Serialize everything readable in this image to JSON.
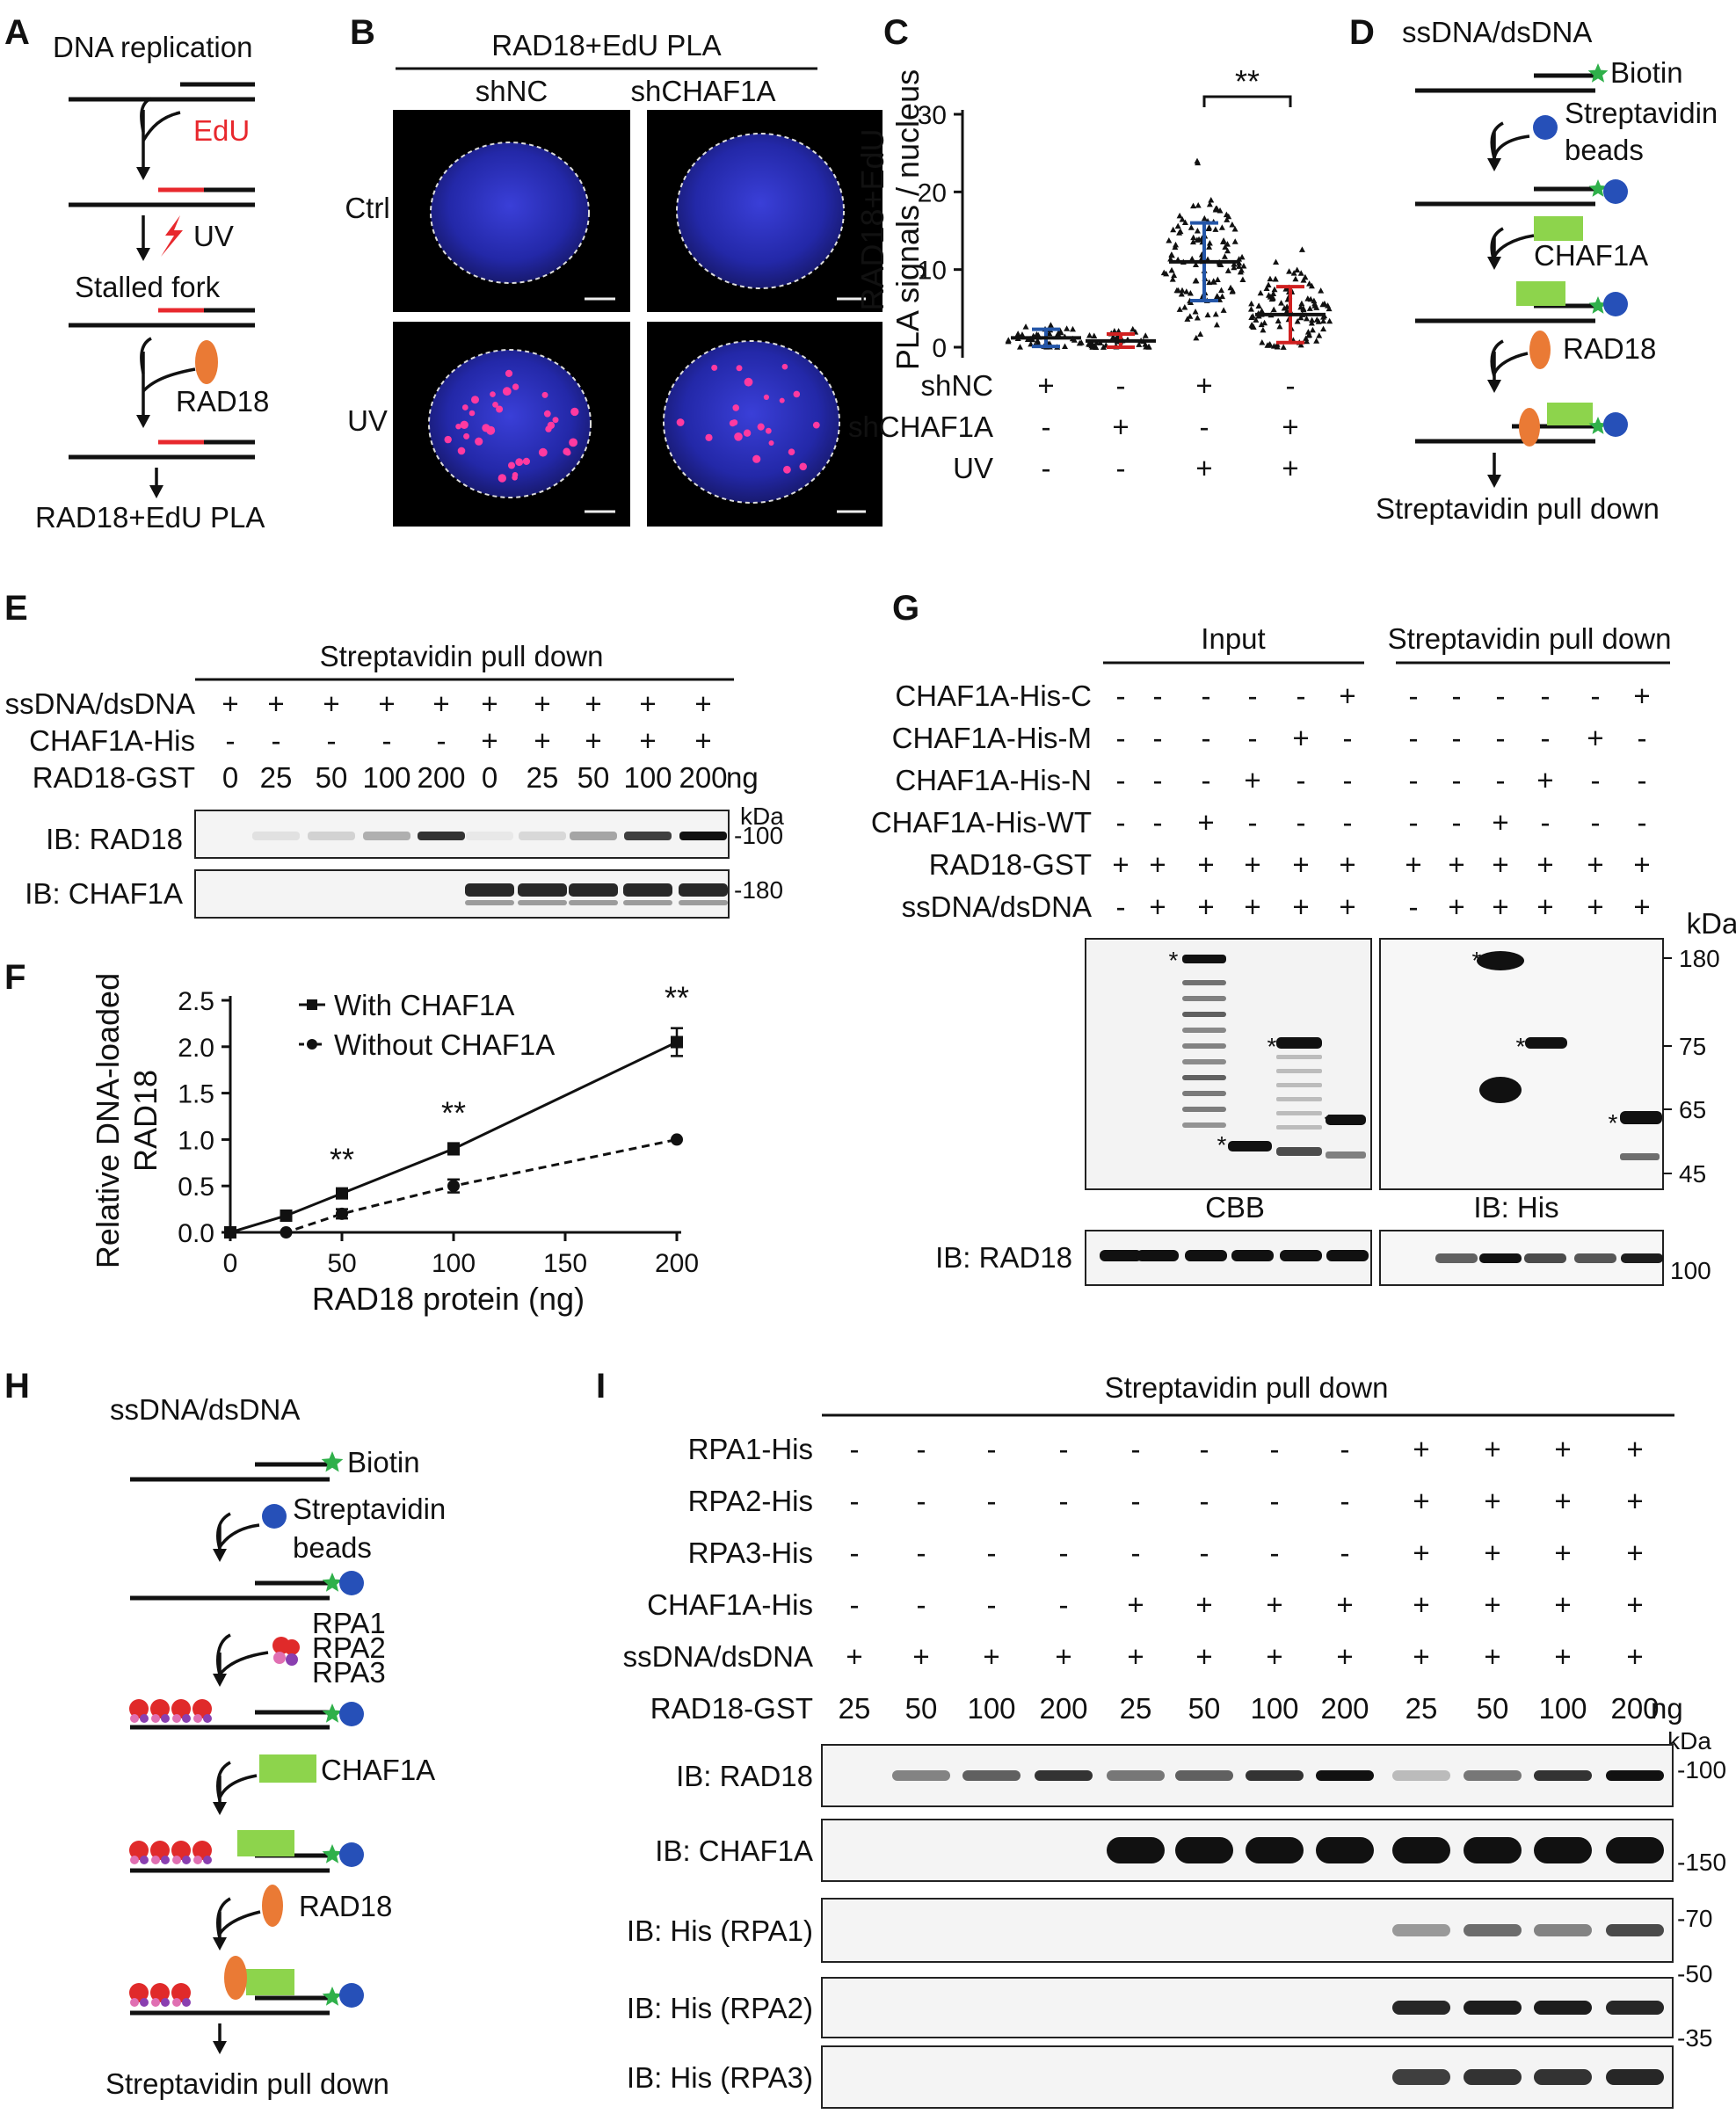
{
  "panelA": {
    "letter": "A",
    "title": "DNA replication",
    "edu": "EdU",
    "uv": "UV",
    "stalled": "Stalled fork",
    "rad18": "RAD18",
    "bottom": "RAD18+EdU PLA"
  },
  "panelB": {
    "letter": "B",
    "title": "RAD18+EdU PLA",
    "cols": [
      "shNC",
      "shCHAF1A"
    ],
    "rows": [
      "Ctrl",
      "UV"
    ]
  },
  "panelC": {
    "letter": "C",
    "ylabel_line1": "RAD18+EdU",
    "ylabel_line2": "PLA signals / nucleus",
    "sig": "**",
    "rows": [
      {
        "label": "shNC",
        "vals": [
          "+",
          "-",
          "+",
          "-"
        ]
      },
      {
        "label": "shCHAF1A",
        "vals": [
          "-",
          "+",
          "-",
          "+"
        ]
      },
      {
        "label": "UV",
        "vals": [
          "-",
          "-",
          "+",
          "+"
        ]
      }
    ],
    "chart_data": {
      "type": "scatter",
      "ylim": [
        0,
        30
      ],
      "yticks": [
        "0",
        "10",
        "20",
        "30"
      ],
      "groups": [
        {
          "mean": 1.2,
          "sd": 1.1,
          "max": 6,
          "n": 40,
          "color": "#2456a8"
        },
        {
          "mean": 0.8,
          "sd": 0.9,
          "max": 5,
          "n": 40,
          "color": "#d02020"
        },
        {
          "mean": 11,
          "sd": 5,
          "max": 25,
          "n": 120,
          "color": "#2456a8"
        },
        {
          "mean": 4.2,
          "sd": 3.6,
          "max": 15,
          "n": 110,
          "color": "#d02020"
        }
      ]
    }
  },
  "panelD": {
    "letter": "D",
    "title": "ssDNA/dsDNA",
    "biotin": "Biotin",
    "beads1": "Streptavidin",
    "beads2": "beads",
    "chaf1a": "CHAF1A",
    "rad18": "RAD18",
    "bottom": "Streptavidin pull down"
  },
  "panelE": {
    "letter": "E",
    "title": "Streptavidin pull down",
    "rows": [
      {
        "label": "ssDNA/dsDNA",
        "vals": [
          "+",
          "+",
          "+",
          "+",
          "+",
          "+",
          "+",
          "+",
          "+",
          "+"
        ]
      },
      {
        "label": "CHAF1A-His",
        "vals": [
          "-",
          "-",
          "-",
          "-",
          "-",
          "+",
          "+",
          "+",
          "+",
          "+"
        ]
      },
      {
        "label": "RAD18-GST",
        "vals": [
          "0",
          "25",
          "50",
          "100",
          "200",
          "0",
          "25",
          "50",
          "100",
          "200"
        ]
      }
    ],
    "unit": "ng",
    "kda": "kDa",
    "blots": [
      {
        "label": "IB: RAD18",
        "marker": "100"
      },
      {
        "label": "IB: CHAF1A",
        "marker": "180"
      }
    ]
  },
  "panelF": {
    "letter": "F",
    "ylabel_line1": "Relative DNA-loaded",
    "ylabel_line2": "RAD18",
    "xlabel": "RAD18 protein (ng)",
    "chart_data": {
      "type": "line",
      "x": [
        0,
        25,
        50,
        100,
        200
      ],
      "xlim": [
        0,
        200
      ],
      "ylim": [
        0,
        2.5
      ],
      "xticks": [
        "0",
        "50",
        "100",
        "150",
        "200"
      ],
      "yticks": [
        "0.0",
        "0.5",
        "1.0",
        "1.5",
        "2.0",
        "2.5"
      ],
      "series": [
        {
          "name": "With CHAF1A",
          "values": [
            0,
            0.18,
            0.42,
            0.9,
            2.05
          ],
          "err": [
            0,
            0.02,
            0.04,
            0.06,
            0.15
          ]
        },
        {
          "name": "Without CHAF1A",
          "values": [
            0,
            0,
            0.2,
            0.5,
            1.0
          ],
          "err": [
            0,
            0,
            0.05,
            0.07,
            0
          ]
        }
      ],
      "annotations": [
        {
          "x": 50,
          "text": "**"
        },
        {
          "x": 100,
          "text": "**"
        },
        {
          "x": 200,
          "text": "**"
        }
      ]
    }
  },
  "panelG": {
    "letter": "G",
    "input": "Input",
    "pulldown": "Streptavidin pull down",
    "rows": [
      {
        "label": "CHAF1A-His-C",
        "vals": [
          "-",
          "-",
          "-",
          "-",
          "-",
          "+",
          "-",
          "-",
          "-",
          "-",
          "-",
          "+"
        ]
      },
      {
        "label": "CHAF1A-His-M",
        "vals": [
          "-",
          "-",
          "-",
          "-",
          "+",
          "-",
          "-",
          "-",
          "-",
          "-",
          "+",
          "-"
        ]
      },
      {
        "label": "CHAF1A-His-N",
        "vals": [
          "-",
          "-",
          "-",
          "+",
          "-",
          "-",
          "-",
          "-",
          "-",
          "+",
          "-",
          "-"
        ]
      },
      {
        "label": "CHAF1A-His-WT",
        "vals": [
          "-",
          "-",
          "+",
          "-",
          "-",
          "-",
          "-",
          "-",
          "+",
          "-",
          "-",
          "-"
        ]
      },
      {
        "label": "RAD18-GST",
        "vals": [
          "+",
          "+",
          "+",
          "+",
          "+",
          "+",
          "+",
          "+",
          "+",
          "+",
          "+",
          "+"
        ]
      },
      {
        "label": "ssDNA/dsDNA",
        "vals": [
          "-",
          "+",
          "+",
          "+",
          "+",
          "+",
          "-",
          "+",
          "+",
          "+",
          "+",
          "+"
        ]
      }
    ],
    "kda": "kDa",
    "markers": [
      "180",
      "75",
      "65",
      "45"
    ],
    "cbb": "CBB",
    "ibhis": "IB: His",
    "ibrad18": "IB: RAD18",
    "marker100": "100",
    "star": "*"
  },
  "panelH": {
    "letter": "H",
    "title": "ssDNA/dsDNA",
    "biotin": "Biotin",
    "beads1": "Streptavidin",
    "beads2": "beads",
    "rpa": [
      "RPA1",
      "RPA2",
      "RPA3"
    ],
    "chaf1a": "CHAF1A",
    "rad18": "RAD18",
    "bottom": "Streptavidin pull down"
  },
  "panelI": {
    "letter": "I",
    "title": "Streptavidin pull down",
    "rows": [
      {
        "label": "RPA1-His",
        "vals": [
          "-",
          "-",
          "-",
          "-",
          "-",
          "-",
          "-",
          "-",
          "+",
          "+",
          "+",
          "+"
        ]
      },
      {
        "label": "RPA2-His",
        "vals": [
          "-",
          "-",
          "-",
          "-",
          "-",
          "-",
          "-",
          "-",
          "+",
          "+",
          "+",
          "+"
        ]
      },
      {
        "label": "RPA3-His",
        "vals": [
          "-",
          "-",
          "-",
          "-",
          "-",
          "-",
          "-",
          "-",
          "+",
          "+",
          "+",
          "+"
        ]
      },
      {
        "label": "CHAF1A-His",
        "vals": [
          "-",
          "-",
          "-",
          "-",
          "+",
          "+",
          "+",
          "+",
          "+",
          "+",
          "+",
          "+"
        ]
      },
      {
        "label": "ssDNA/dsDNA",
        "vals": [
          "+",
          "+",
          "+",
          "+",
          "+",
          "+",
          "+",
          "+",
          "+",
          "+",
          "+",
          "+"
        ]
      },
      {
        "label": "RAD18-GST",
        "vals": [
          "25",
          "50",
          "100",
          "200",
          "25",
          "50",
          "100",
          "200",
          "25",
          "50",
          "100",
          "200"
        ]
      }
    ],
    "unit": "ng",
    "kda": "kDa",
    "blots": [
      {
        "label": "IB: RAD18",
        "marker": "100"
      },
      {
        "label": "IB: CHAF1A",
        "marker": "150"
      },
      {
        "label": "IB: His (RPA1)",
        "marker": "70"
      },
      {
        "label": "IB: His (RPA2)",
        "marker": "50"
      },
      {
        "label": "IB: His (RPA3)",
        "marker": "35"
      }
    ]
  }
}
